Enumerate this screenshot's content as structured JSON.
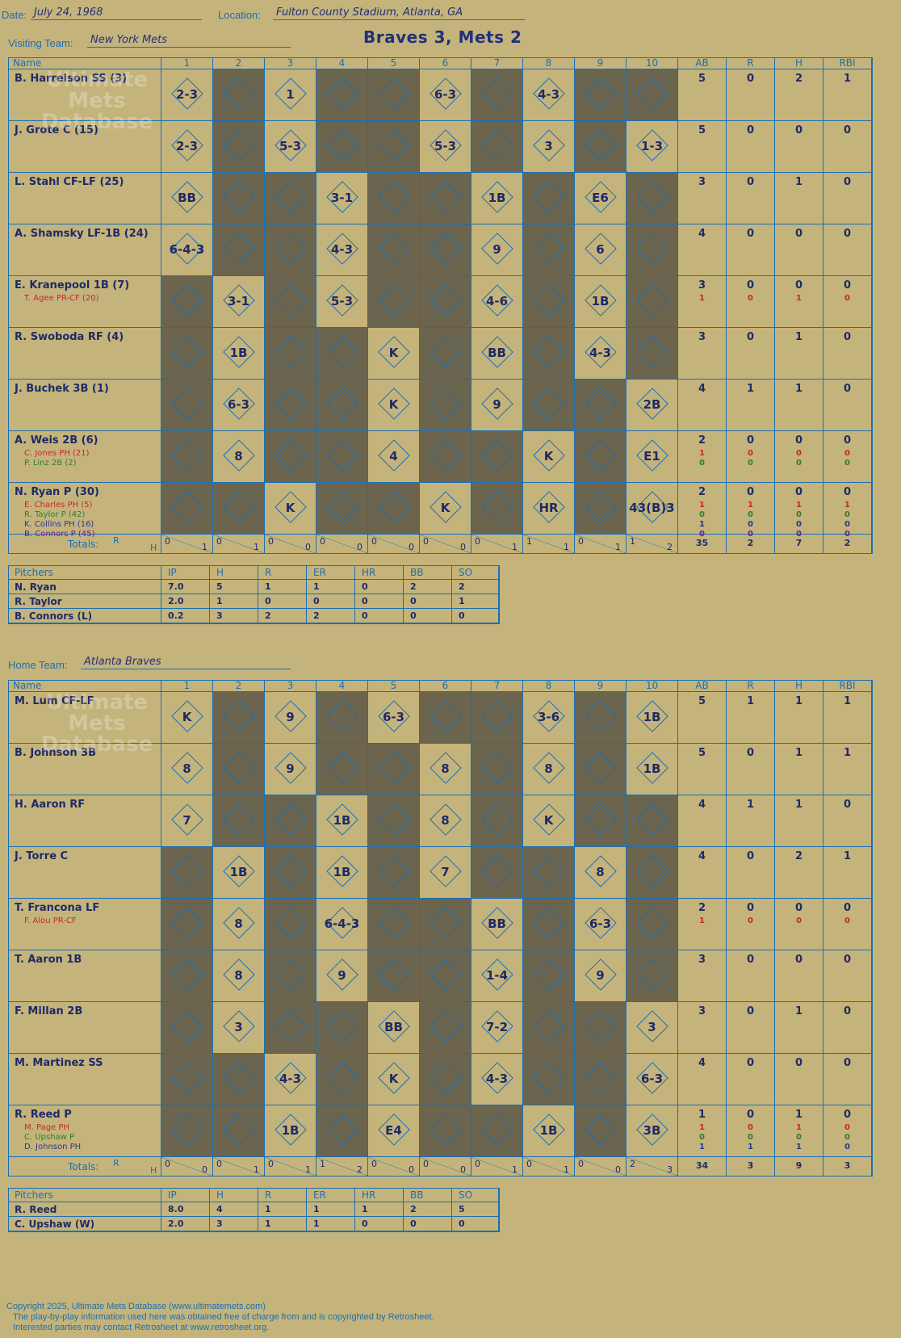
{
  "header": {
    "date_label": "Date:",
    "date": "July 24, 1968",
    "location_label": "Location:",
    "location": "Fulton County Stadium, Atlanta, GA",
    "visiting_label": "Visiting Team:",
    "visiting": "New York Mets",
    "home_label": "Home Team:",
    "home": "Atlanta Braves",
    "title": "Braves 3, Mets 2"
  },
  "columns": {
    "name": "Name",
    "innings": [
      "1",
      "2",
      "3",
      "4",
      "5",
      "6",
      "7",
      "8",
      "9",
      "10"
    ],
    "ab": "AB",
    "r": "R",
    "h": "H",
    "rbi": "RBI"
  },
  "away": {
    "players": [
      {
        "name": "B. Harrelson SS (3)",
        "subs": [],
        "ab": [
          "5"
        ],
        "r": [
          "0"
        ],
        "h": [
          "2"
        ],
        "rbi": [
          "1"
        ]
      },
      {
        "name": "J. Grote C (15)",
        "subs": [],
        "ab": [
          "5"
        ],
        "r": [
          "0"
        ],
        "h": [
          "0"
        ],
        "rbi": [
          "0"
        ]
      },
      {
        "name": "L. Stahl CF-LF (25)",
        "subs": [],
        "ab": [
          "3"
        ],
        "r": [
          "0"
        ],
        "h": [
          "1"
        ],
        "rbi": [
          "0"
        ]
      },
      {
        "name": "A. Shamsky LF-1B (24)",
        "subs": [],
        "ab": [
          "4"
        ],
        "r": [
          "0"
        ],
        "h": [
          "0"
        ],
        "rbi": [
          "0"
        ]
      },
      {
        "name": "E. Kranepool 1B (7)",
        "subs": [
          {
            "n": "T. Agee PR-CF (20)",
            "c": "red"
          }
        ],
        "ab": [
          "3",
          "1"
        ],
        "r": [
          "0",
          "0"
        ],
        "h": [
          "0",
          "1"
        ],
        "rbi": [
          "0",
          "0"
        ]
      },
      {
        "name": "R. Swoboda RF (4)",
        "subs": [],
        "ab": [
          "3"
        ],
        "r": [
          "0"
        ],
        "h": [
          "1"
        ],
        "rbi": [
          "0"
        ]
      },
      {
        "name": "J. Buchek 3B (1)",
        "subs": [],
        "ab": [
          "4"
        ],
        "r": [
          "1"
        ],
        "h": [
          "1"
        ],
        "rbi": [
          "0"
        ]
      },
      {
        "name": "A. Weis 2B (6)",
        "subs": [
          {
            "n": "C. Jones PH (21)",
            "c": "red"
          },
          {
            "n": "P. Linz 2B (2)",
            "c": "green"
          }
        ],
        "ab": [
          "2",
          "1",
          "0"
        ],
        "r": [
          "0",
          "0",
          "0"
        ],
        "h": [
          "0",
          "0",
          "0"
        ],
        "rbi": [
          "0",
          "0",
          "0"
        ]
      },
      {
        "name": "N. Ryan P (30)",
        "subs": [
          {
            "n": "E. Charles PH (5)",
            "c": "red"
          },
          {
            "n": "R. Taylor P (42)",
            "c": "green"
          },
          {
            "n": "K. Collins PH (16)",
            "c": "dblue"
          },
          {
            "n": "B. Connors P (45)",
            "c": "purple"
          }
        ],
        "ab": [
          "2",
          "1",
          "0",
          "1",
          "0"
        ],
        "r": [
          "0",
          "1",
          "0",
          "0",
          "0"
        ],
        "h": [
          "0",
          "1",
          "0",
          "0",
          "0"
        ],
        "rbi": [
          "0",
          "1",
          "0",
          "0",
          "0"
        ]
      }
    ],
    "plays": [
      [
        "2-3",
        "",
        "1",
        "",
        "",
        "6-3",
        "",
        "4-3",
        "",
        ""
      ],
      [
        "2-3",
        "",
        "5-3",
        "",
        "",
        "5-3",
        "",
        "3",
        "",
        "1-3"
      ],
      [
        "BB",
        "",
        "",
        "3-1",
        "",
        "",
        "1B",
        "",
        "E6",
        ""
      ],
      [
        "6-4-3",
        "",
        "",
        "4-3",
        "",
        "",
        "9",
        "",
        "6",
        ""
      ],
      [
        "",
        "3-1",
        "",
        "5-3",
        "",
        "",
        "4-6",
        "",
        "1B",
        ""
      ],
      [
        "",
        "1B",
        "",
        "",
        "K",
        "",
        "BB",
        "",
        "4-3",
        ""
      ],
      [
        "",
        "6-3",
        "",
        "",
        "K",
        "",
        "9",
        "",
        "",
        "2B"
      ],
      [
        "",
        "8",
        "",
        "",
        "4",
        "",
        "",
        "K",
        "",
        "E1"
      ],
      [
        "",
        "",
        "K",
        "",
        "",
        "K",
        "",
        "HR",
        "",
        "43(B)3"
      ]
    ],
    "totals_label": "Totals:",
    "rh_r": "R",
    "rh_h": "H",
    "totals": [
      [
        "0",
        "1"
      ],
      [
        "0",
        "1"
      ],
      [
        "0",
        "0"
      ],
      [
        "0",
        "0"
      ],
      [
        "0",
        "0"
      ],
      [
        "0",
        "0"
      ],
      [
        "0",
        "1"
      ],
      [
        "1",
        "1"
      ],
      [
        "0",
        "1"
      ],
      [
        "1",
        "2"
      ]
    ],
    "sum": [
      "35",
      "2",
      "7",
      "2"
    ],
    "pitchers_label": "Pitchers",
    "pitcher_cols": [
      "IP",
      "H",
      "R",
      "ER",
      "HR",
      "BB",
      "SO"
    ],
    "pitchers": [
      {
        "name": "N. Ryan",
        "s": [
          "7.0",
          "5",
          "1",
          "1",
          "0",
          "2",
          "2"
        ]
      },
      {
        "name": "R. Taylor",
        "s": [
          "2.0",
          "1",
          "0",
          "0",
          "0",
          "0",
          "1"
        ]
      },
      {
        "name": "B. Connors (L)",
        "s": [
          "0.2",
          "3",
          "2",
          "2",
          "0",
          "0",
          "0"
        ]
      }
    ]
  },
  "home": {
    "players": [
      {
        "name": "M. Lum CF-LF",
        "subs": [],
        "ab": [
          "5"
        ],
        "r": [
          "1"
        ],
        "h": [
          "1"
        ],
        "rbi": [
          "1"
        ]
      },
      {
        "name": "B. Johnson 3B",
        "subs": [],
        "ab": [
          "5"
        ],
        "r": [
          "0"
        ],
        "h": [
          "1"
        ],
        "rbi": [
          "1"
        ]
      },
      {
        "name": "H. Aaron RF",
        "subs": [],
        "ab": [
          "4"
        ],
        "r": [
          "1"
        ],
        "h": [
          "1"
        ],
        "rbi": [
          "0"
        ]
      },
      {
        "name": "J. Torre C",
        "subs": [],
        "ab": [
          "4"
        ],
        "r": [
          "0"
        ],
        "h": [
          "2"
        ],
        "rbi": [
          "1"
        ]
      },
      {
        "name": "T. Francona LF",
        "subs": [
          {
            "n": "F. Alou PR-CF",
            "c": "red"
          }
        ],
        "ab": [
          "2",
          "1"
        ],
        "r": [
          "0",
          "0"
        ],
        "h": [
          "0",
          "0"
        ],
        "rbi": [
          "0",
          "0"
        ]
      },
      {
        "name": "T. Aaron 1B",
        "subs": [],
        "ab": [
          "3"
        ],
        "r": [
          "0"
        ],
        "h": [
          "0"
        ],
        "rbi": [
          "0"
        ]
      },
      {
        "name": "F. Millan 2B",
        "subs": [],
        "ab": [
          "3"
        ],
        "r": [
          "0"
        ],
        "h": [
          "1"
        ],
        "rbi": [
          "0"
        ]
      },
      {
        "name": "M. Martinez SS",
        "subs": [],
        "ab": [
          "4"
        ],
        "r": [
          "0"
        ],
        "h": [
          "0"
        ],
        "rbi": [
          "0"
        ]
      },
      {
        "name": "R. Reed P",
        "subs": [
          {
            "n": "M. Page PH",
            "c": "red"
          },
          {
            "n": "C. Upshaw P",
            "c": "green"
          },
          {
            "n": "D. Johnson PH",
            "c": "dblue"
          }
        ],
        "ab": [
          "1",
          "1",
          "0",
          "1"
        ],
        "r": [
          "0",
          "0",
          "0",
          "1"
        ],
        "h": [
          "1",
          "1",
          "0",
          "1"
        ],
        "rbi": [
          "0",
          "0",
          "0",
          "0"
        ]
      }
    ],
    "plays": [
      [
        "K",
        "",
        "9",
        "",
        "6-3",
        "",
        "",
        "3-6",
        "",
        "1B"
      ],
      [
        "8",
        "",
        "9",
        "",
        "",
        "8",
        "",
        "8",
        "",
        "1B"
      ],
      [
        "7",
        "",
        "",
        "1B",
        "",
        "8",
        "",
        "K",
        "",
        ""
      ],
      [
        "",
        "1B",
        "",
        "1B",
        "",
        "7",
        "",
        "",
        "8",
        ""
      ],
      [
        "",
        "8",
        "",
        "6-4-3",
        "",
        "",
        "BB",
        "",
        "6-3",
        ""
      ],
      [
        "",
        "8",
        "",
        "9",
        "",
        "",
        "1-4",
        "",
        "9",
        ""
      ],
      [
        "",
        "3",
        "",
        "",
        "BB",
        "",
        "7-2",
        "",
        "",
        "3"
      ],
      [
        "",
        "",
        "4-3",
        "",
        "K",
        "",
        "4-3",
        "",
        "",
        "6-3"
      ],
      [
        "",
        "",
        "1B",
        "",
        "E4",
        "",
        "",
        "1B",
        "",
        "3B"
      ]
    ],
    "totals_label": "Totals:",
    "rh_r": "R",
    "rh_h": "H",
    "totals": [
      [
        "0",
        "0"
      ],
      [
        "0",
        "1"
      ],
      [
        "0",
        "1"
      ],
      [
        "1",
        "2"
      ],
      [
        "0",
        "0"
      ],
      [
        "0",
        "0"
      ],
      [
        "0",
        "1"
      ],
      [
        "0",
        "1"
      ],
      [
        "0",
        "0"
      ],
      [
        "2",
        "3"
      ]
    ],
    "sum": [
      "34",
      "3",
      "9",
      "3"
    ],
    "pitchers_label": "Pitchers",
    "pitcher_cols": [
      "IP",
      "H",
      "R",
      "ER",
      "HR",
      "BB",
      "SO"
    ],
    "pitchers": [
      {
        "name": "R. Reed",
        "s": [
          "8.0",
          "4",
          "1",
          "1",
          "1",
          "2",
          "5"
        ]
      },
      {
        "name": "C. Upshaw (W)",
        "s": [
          "2.0",
          "3",
          "1",
          "1",
          "0",
          "0",
          "0"
        ]
      }
    ]
  },
  "footer": [
    "Copyright 2025, Ultimate Mets Database (www.ultimatemets.com)",
    "The play-by-play information used here was obtained free of charge from and is copyrighted by Retrosheet.",
    "Interested parties may contact Retrosheet at www.retrosheet.org."
  ],
  "watermark": "Ultimate Mets Database"
}
